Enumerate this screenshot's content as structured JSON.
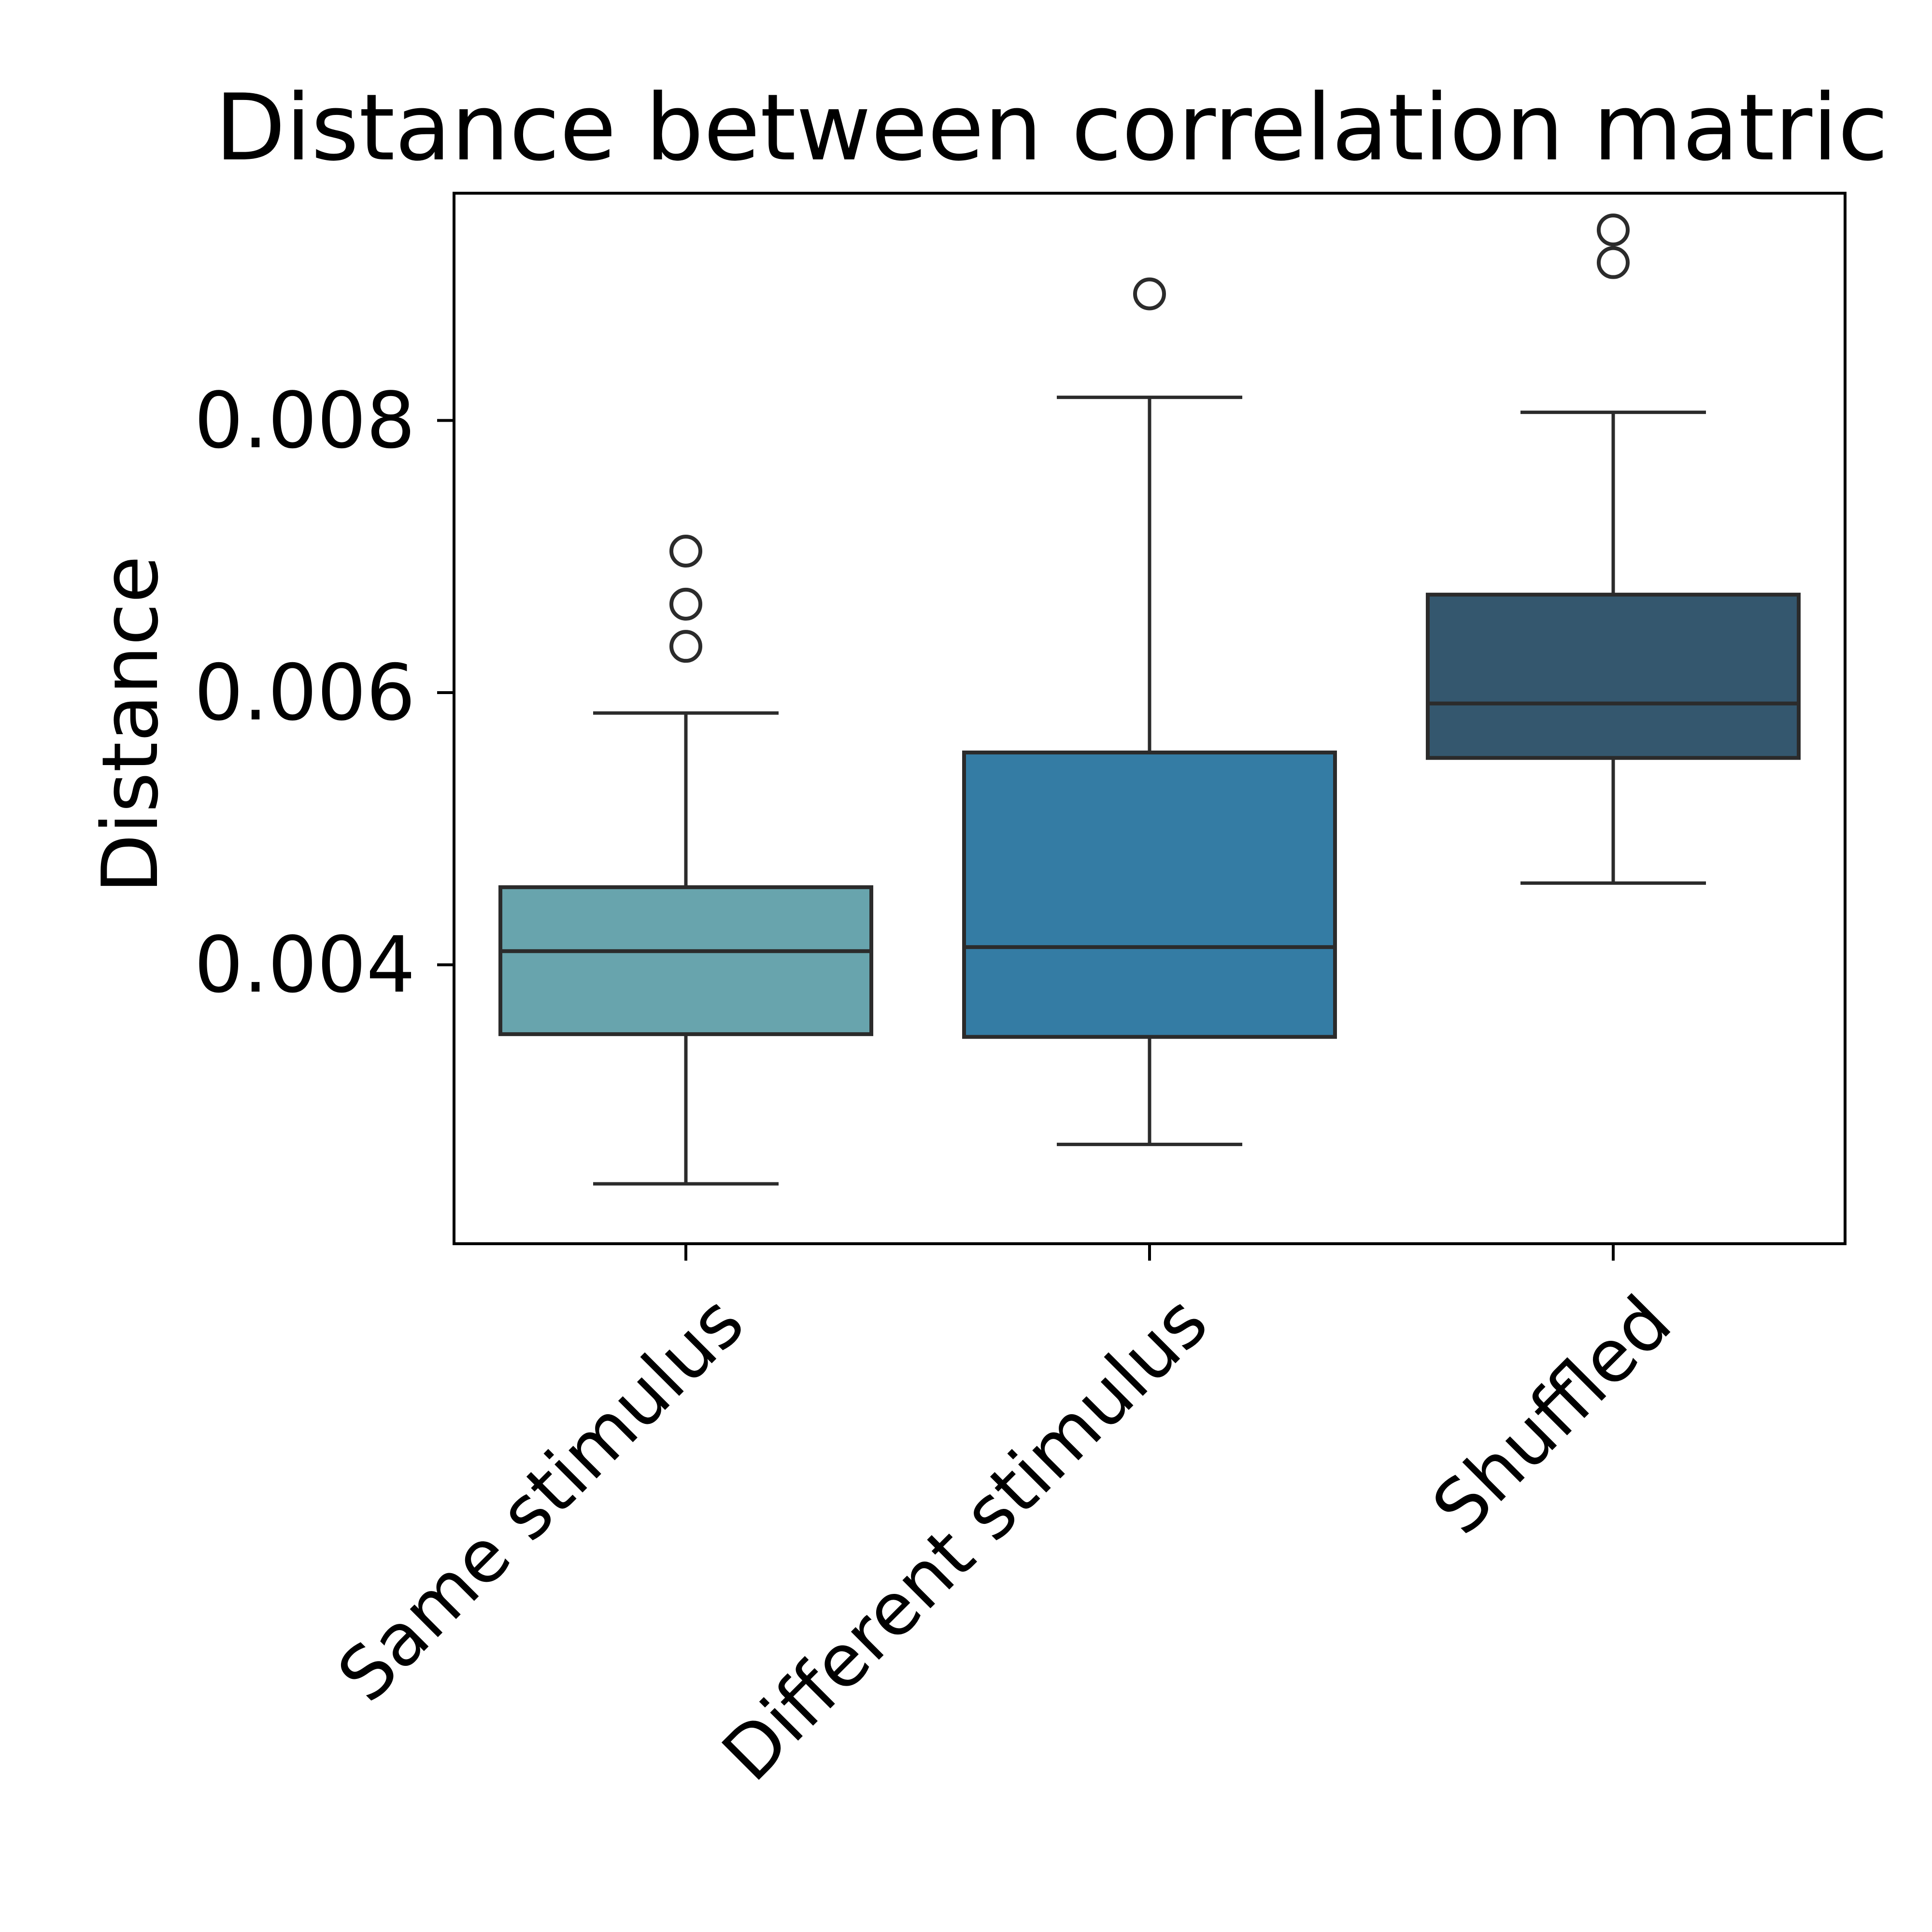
{
  "chart_data": {
    "type": "box",
    "title": "Distance between correlation matric",
    "xlabel": "",
    "ylabel": "Distance",
    "ylim": [
      0.00195,
      0.00967
    ],
    "yticks": [
      {
        "value": 0.004,
        "label": "0.004"
      },
      {
        "value": 0.006,
        "label": "0.006"
      },
      {
        "value": 0.008,
        "label": "0.008"
      }
    ],
    "grid": false,
    "legend": "none",
    "categories": [
      "Same stimulus",
      "Different stimulus",
      "Shuffled"
    ],
    "boxes": [
      {
        "category": "Same stimulus",
        "whisker_low": 0.00239,
        "q1": 0.00349,
        "median": 0.0041,
        "q3": 0.00457,
        "whisker_high": 0.00585,
        "outliers": [
          0.00634,
          0.00665,
          0.00704
        ],
        "color": "#68a4ad"
      },
      {
        "category": "Different stimulus",
        "whisker_low": 0.00268,
        "q1": 0.00347,
        "median": 0.00413,
        "q3": 0.00556,
        "whisker_high": 0.00817,
        "outliers": [
          0.00893
        ],
        "color": "#347ca4"
      },
      {
        "category": "Shuffled",
        "whisker_low": 0.0046,
        "q1": 0.00552,
        "median": 0.00592,
        "q3": 0.00672,
        "whisker_high": 0.00806,
        "outliers": [
          0.00916,
          0.0094
        ],
        "color": "#34576e"
      }
    ],
    "colors": {
      "line": "#2b2b2b",
      "axis": "#000000"
    }
  }
}
